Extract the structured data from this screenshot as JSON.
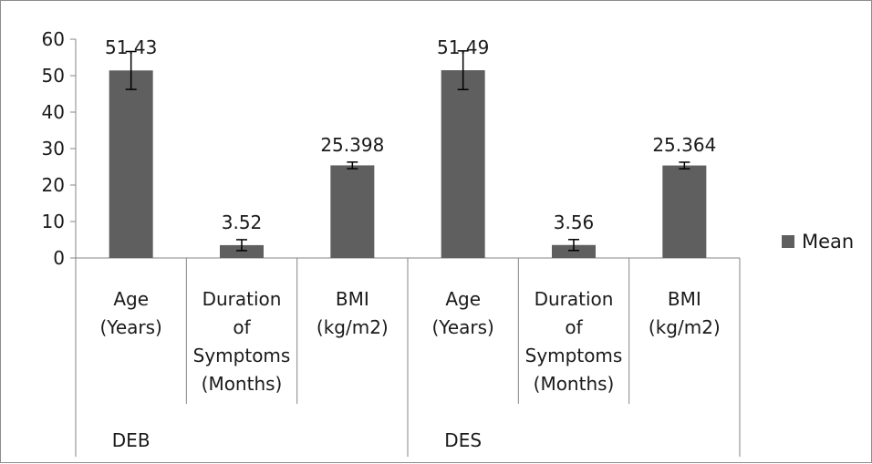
{
  "chart_data": {
    "type": "bar",
    "title": "",
    "xlabel": "",
    "ylabel": "",
    "ylim": [
      0,
      60
    ],
    "yticks": [
      0,
      10,
      20,
      30,
      40,
      50,
      60
    ],
    "grid": false,
    "legend": {
      "placement": "right",
      "entries": [
        "Mean"
      ]
    },
    "groups": [
      {
        "name": "DEB",
        "categories": [
          "Age (Years)",
          "Duration of Symptoms (Months)",
          "BMI (kg/m2)"
        ]
      },
      {
        "name": "DES",
        "categories": [
          "Age (Years)",
          "Duration of Symptoms (Months)",
          "BMI (kg/m2)"
        ]
      }
    ],
    "categories": [
      "Age (Years)",
      "Duration of Symptoms (Months)",
      "BMI (kg/m2)",
      "Age (Years)",
      "Duration of Symptoms (Months)",
      "BMI (kg/m2)"
    ],
    "series": [
      {
        "name": "Mean",
        "color": "#5f5f5f",
        "values": [
          51.43,
          3.52,
          25.398,
          51.49,
          3.56,
          25.364
        ],
        "data_labels": [
          "51.43",
          "3.52",
          "25.398",
          "51.49",
          "3.56",
          "25.364"
        ],
        "error": [
          5.2,
          1.5,
          0.9,
          5.3,
          1.5,
          0.9
        ]
      }
    ]
  }
}
